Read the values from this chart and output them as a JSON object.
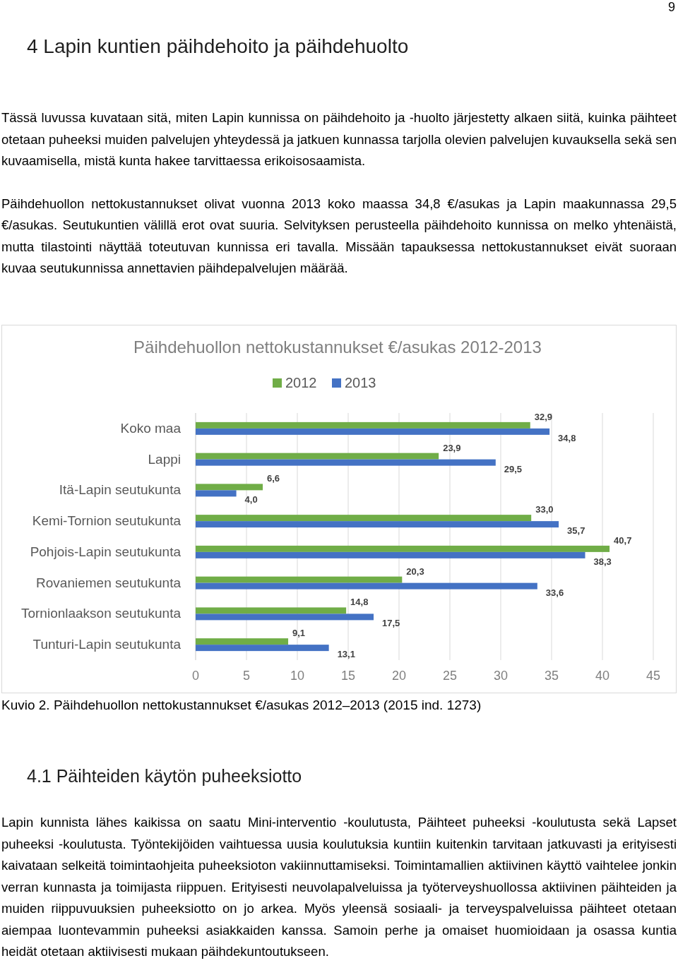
{
  "chart_data": {
    "type": "bar",
    "orientation": "horizontal",
    "title": "Päihdehuollon nettokustannukset €/asukas 2012-2013",
    "categories": [
      "Koko maa",
      "Lappi",
      "Itä-Lapin seutukunta",
      "Kemi-Tornion seutukunta",
      "Pohjois-Lapin seutukunta",
      "Rovaniemen seutukunta",
      "Tornionlaakson seutukunta",
      "Tunturi-Lapin seutukunta"
    ],
    "series": [
      {
        "name": "2012",
        "color": "#70ad47",
        "values": [
          32.9,
          23.9,
          6.6,
          33.0,
          40.7,
          20.3,
          14.8,
          9.1
        ],
        "value_labels": [
          "32,9",
          "23,9",
          "6,6",
          "33,0",
          "40,7",
          "20,3",
          "14,8",
          "9,1"
        ]
      },
      {
        "name": "2013",
        "color": "#4472c4",
        "values": [
          34.8,
          29.5,
          4.0,
          35.7,
          38.3,
          33.6,
          17.5,
          13.1
        ],
        "value_labels": [
          "34,8",
          "29,5",
          "4,0",
          "35,7",
          "38,3",
          "33,6",
          "17,5",
          "13,1"
        ]
      }
    ],
    "xlim": [
      0,
      45
    ],
    "xticks": [
      0,
      5,
      10,
      15,
      20,
      25,
      30,
      35,
      40,
      45
    ],
    "grid": "x",
    "legend": "top",
    "annotations": [
      "9",
      "4 Lapin kuntien päihdehoito ja päihdehuolto",
      "Tässä luvussa kuvataan sitä, miten Lapin kunnissa on päihdehoito ja -huolto järjestetty alkaen siitä, kuinka päihteet otetaan puheeksi muiden palvelujen yhteydessä ja jatkuen kunnassa tarjolla olevien palvelujen kuvauksella sekä sen kuvaamisella, mistä kunta hakee tarvittaessa erikoisosaamista.",
      "Päihdehuollon nettokustannukset olivat vuonna 2013 koko maassa 34,8 €/asukas ja Lapin maakunnassa 29,5 €/asukas. Seutukuntien välillä erot ovat suuria. Selvityksen perusteella päihdehoito kunnissa on melko yhtenäistä, mutta tilastointi näyttää toteutuvan kunnissa eri tavalla. Missään tapauksessa nettokustannukset eivät suoraan kuvaa seutukunnissa annettavien päihdepalvelujen määrää.",
      "Kuvio 2. Päihdehuollon nettokustannukset €/asukas 2012–2013 (2015 ind. 1273)",
      "4.1 Päihteiden käytön puheeksiotto",
      "Lapin kunnista lähes kaikissa on saatu Mini-interventio -koulutusta, Päihteet puheeksi -koulutusta sekä Lapset puheeksi -koulutusta. Työntekijöiden vaihtuessa uusia koulutuksia kuntiin kuitenkin tarvitaan jatkuvasti ja erityisesti kaivataan selkeitä toimintaohjeita puheeksioton vakiinnuttamiseksi. Toimintamallien aktiivinen käyttö vaihtelee jonkin verran kunnasta ja toimijasta riippuen. Erityisesti neuvolapalveluissa ja työterveyshuollossa aktiivinen päihteiden ja muiden riippuvuuksien puheeksiotto on jo arkea. Myös yleensä sosiaali- ja terveyspalveluissa päihteet otetaan aiempaa luontevammin puheeksi asiakkaiden kanssa. Samoin perhe ja omaiset huomioidaan ja osassa kuntia heidät otetaan aktiivisesti mukaan päihdekuntoutukseen."
    ]
  }
}
